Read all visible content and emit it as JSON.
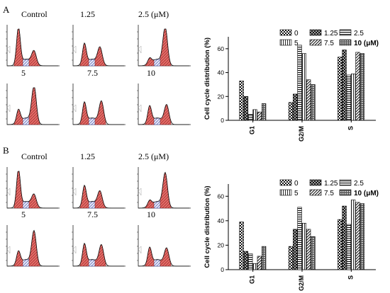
{
  "panels": [
    {
      "letter": "A",
      "histogram_labels": [
        "Control",
        "1.25",
        "2.5 (μM)",
        "5",
        "7.5",
        "10"
      ]
    },
    {
      "letter": "B",
      "histogram_labels": [
        "Control",
        "1.25",
        "2.5 (μM)",
        "5",
        "7.5",
        "10"
      ]
    }
  ],
  "chart_data": [
    {
      "type": "bar",
      "title": "",
      "xlabel": "",
      "ylabel": "Cell cycle distribution (%)",
      "categories": [
        "G1",
        "G2/M",
        "S"
      ],
      "ylim": [
        0,
        70
      ],
      "yticks": [
        0,
        20,
        40,
        60
      ],
      "legend_position": "top-right",
      "series": [
        {
          "name": "0",
          "values": [
            33,
            15,
            53
          ]
        },
        {
          "name": "1.25",
          "values": [
            20,
            22,
            59
          ]
        },
        {
          "name": "2.5",
          "values": [
            5,
            63,
            38
          ]
        },
        {
          "name": "5",
          "values": [
            9,
            56,
            39
          ]
        },
        {
          "name": "7.5",
          "values": [
            7,
            34,
            57
          ]
        },
        {
          "name": "10 (μM)",
          "values": [
            14,
            30,
            56
          ]
        }
      ]
    },
    {
      "type": "bar",
      "title": "",
      "xlabel": "",
      "ylabel": "Cell cycle distribution (%)",
      "categories": [
        "G1",
        "G2/M",
        "S"
      ],
      "ylim": [
        0,
        70
      ],
      "yticks": [
        0,
        20,
        40,
        60
      ],
      "legend_position": "top-right",
      "series": [
        {
          "name": "0",
          "values": [
            39,
            19,
            41
          ]
        },
        {
          "name": "1.25",
          "values": [
            15,
            33,
            52
          ]
        },
        {
          "name": "2.5",
          "values": [
            13,
            51,
            37
          ]
        },
        {
          "name": "5",
          "values": [
            5,
            38,
            57
          ]
        },
        {
          "name": "7.5",
          "values": [
            11,
            33,
            55
          ]
        },
        {
          "name": "10 (μM)",
          "values": [
            19,
            27,
            54
          ]
        }
      ]
    }
  ]
}
